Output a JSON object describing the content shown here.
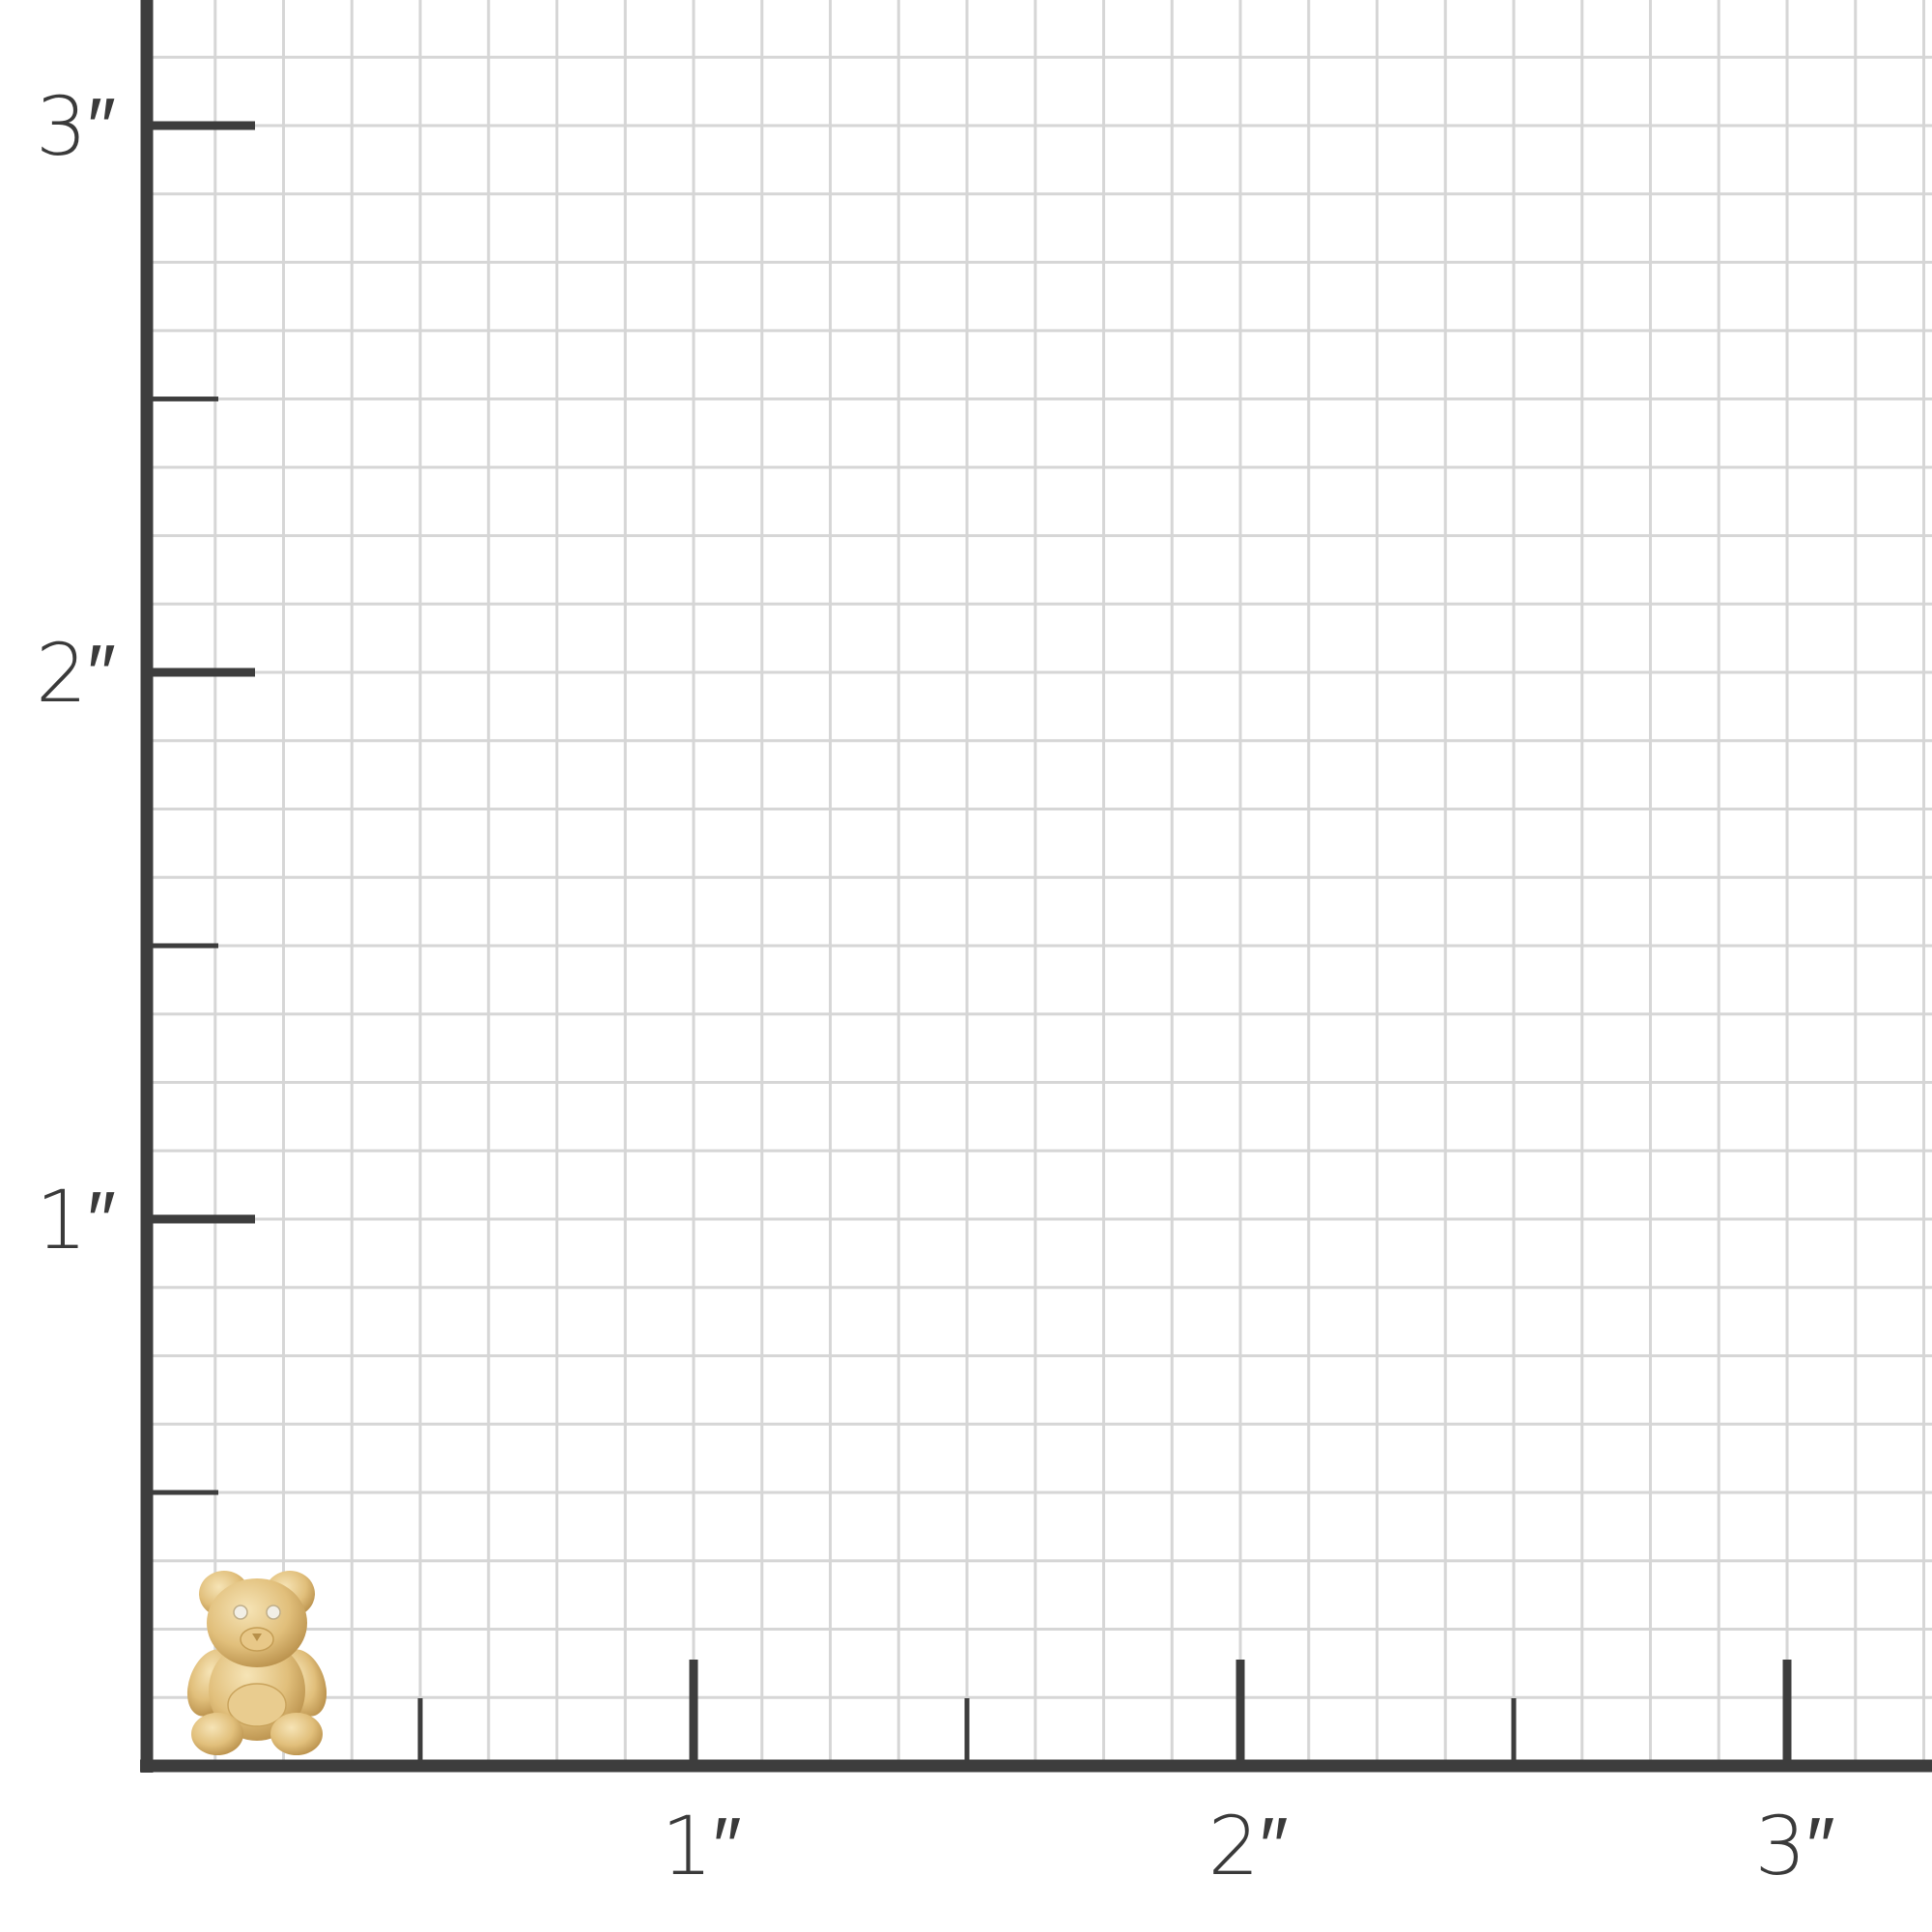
{
  "chart_data": {
    "type": "size-grid",
    "unit": "inch",
    "grid": true,
    "minor_division": 0.125,
    "xlim": [
      0,
      3.5
    ],
    "ylim": [
      0,
      3.5
    ],
    "x_ticks": [
      {
        "value": 1,
        "label": "1″"
      },
      {
        "value": 2,
        "label": "2″"
      },
      {
        "value": 3,
        "label": "3″"
      }
    ],
    "y_ticks": [
      {
        "value": 1,
        "label": "1″"
      },
      {
        "value": 2,
        "label": "2″"
      },
      {
        "value": 3,
        "label": "3″"
      }
    ],
    "half_ticks": [
      0.5,
      1.5,
      2.5
    ]
  },
  "product": {
    "icon": "teddy-bear-pendant",
    "colors": {
      "gold": "#e3c27e",
      "gold_light": "#f4e0b0",
      "gold_dark": "#b8904a"
    }
  },
  "colors": {
    "axis": "#3d3d3d",
    "grid": "#d6d6d6",
    "label": "#3a3a3a"
  }
}
